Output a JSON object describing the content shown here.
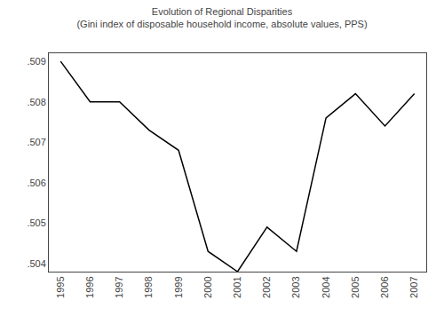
{
  "chart_data": {
    "type": "line",
    "title": "Evolution of Regional Disparities",
    "subtitle": "(Gini index of disposable household income, absolute values, PPS)",
    "x": [
      1995,
      1996,
      1997,
      1998,
      1999,
      2000,
      2001,
      2002,
      2003,
      2004,
      2005,
      2006,
      2007
    ],
    "values": [
      0.509,
      0.508,
      0.508,
      0.5073,
      0.5068,
      0.5043,
      0.5038,
      0.5049,
      0.5043,
      0.5076,
      0.5082,
      0.5074,
      0.5082
    ],
    "color": "#000000",
    "xlim": [
      1994.6,
      2007.4
    ],
    "xticks": [
      1995,
      1996,
      1997,
      1998,
      1999,
      2000,
      2001,
      2002,
      2003,
      2004,
      2005,
      2006,
      2007
    ],
    "ylim": [
      0.5038,
      0.5092
    ],
    "yticks": [
      {
        "value": 0.504,
        "label": ".504"
      },
      {
        "value": 0.505,
        "label": ".505"
      },
      {
        "value": 0.506,
        "label": ".506"
      },
      {
        "value": 0.507,
        "label": ".507"
      },
      {
        "value": 0.508,
        "label": ".508"
      },
      {
        "value": 0.509,
        "label": ".509"
      }
    ],
    "grid": false
  }
}
